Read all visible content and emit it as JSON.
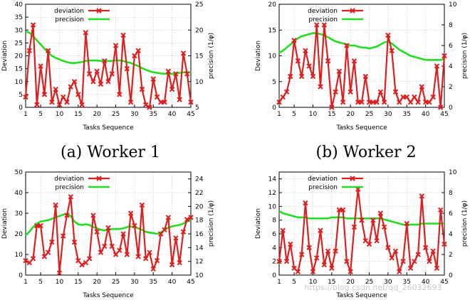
{
  "watermark": "https://blog.csdn.net/qq_26032693",
  "colors": {
    "deviation": "#dd1f1f",
    "precision": "#22dd22",
    "grid": "#999999"
  },
  "chart_data": [
    {
      "type": "line",
      "caption": "(a) Worker 1",
      "xlabel": "Tasks Sequence",
      "ylabel": "Deviation",
      "y2label": "precision (1/φ)",
      "xlim": [
        1,
        45
      ],
      "xticks": [
        1,
        5,
        10,
        15,
        20,
        25,
        30,
        35,
        40,
        45
      ],
      "ylim": [
        0,
        40
      ],
      "yticks": [
        0,
        5,
        10,
        15,
        20,
        25,
        30,
        35,
        40
      ],
      "y2lim": [
        5,
        25
      ],
      "y2ticks": [
        5,
        10,
        15,
        20,
        25
      ],
      "legend": [
        "deviation",
        "precision"
      ],
      "x": [
        1,
        2,
        3,
        4,
        5,
        6,
        7,
        8,
        9,
        10,
        11,
        12,
        13,
        14,
        15,
        16,
        17,
        18,
        19,
        20,
        21,
        22,
        23,
        24,
        25,
        26,
        27,
        28,
        29,
        30,
        31,
        32,
        33,
        34,
        35,
        36,
        37,
        38,
        39,
        40,
        41,
        42,
        43,
        44,
        45
      ],
      "series": [
        {
          "name": "deviation",
          "axis": "left",
          "values": [
            4,
            22,
            32,
            1,
            16,
            5,
            22,
            2,
            7,
            1,
            4,
            2,
            8,
            10,
            5,
            1,
            29,
            13,
            10,
            14,
            9,
            18,
            10,
            13,
            24,
            5,
            28,
            15,
            2,
            20,
            22,
            7,
            1,
            0,
            11,
            4,
            2,
            2,
            14,
            7,
            13,
            3,
            21,
            13,
            2
          ]
        },
        {
          "name": "precision",
          "axis": "right",
          "values": [
            19.7,
            19.5,
            18.8,
            18.0,
            17.2,
            16.4,
            15.6,
            15.0,
            14.6,
            14.3,
            14.0,
            13.8,
            13.6,
            13.6,
            13.7,
            13.8,
            14.0,
            14.1,
            14.1,
            14.1,
            14.0,
            14.0,
            14.0,
            14.0,
            14.1,
            14.1,
            14.0,
            13.8,
            13.6,
            13.3,
            13.0,
            12.6,
            12.3,
            12.0,
            11.8,
            11.7,
            11.6,
            11.5,
            11.5,
            11.5,
            11.6,
            11.7,
            11.8,
            11.8,
            11.8
          ]
        }
      ]
    },
    {
      "type": "line",
      "caption": "(b) Worker 2",
      "xlabel": "Tasks Sequence",
      "ylabel": "Deviation",
      "y2label": "precision (1/φ)",
      "xlim": [
        1,
        45
      ],
      "xticks": [
        1,
        5,
        10,
        15,
        20,
        25,
        30,
        35,
        40,
        45
      ],
      "ylim": [
        0,
        20
      ],
      "yticks": [
        0,
        5,
        10,
        15,
        20
      ],
      "y2lim": [
        0,
        10
      ],
      "y2ticks": [
        0,
        2,
        4,
        6,
        8,
        10
      ],
      "legend": [
        "deviation",
        "precision"
      ],
      "x": [
        1,
        2,
        3,
        4,
        5,
        6,
        7,
        8,
        9,
        10,
        11,
        12,
        13,
        14,
        15,
        16,
        17,
        18,
        19,
        20,
        21,
        22,
        23,
        24,
        25,
        26,
        27,
        28,
        29,
        30,
        31,
        32,
        33,
        34,
        35,
        36,
        37,
        38,
        39,
        40,
        41,
        42,
        43,
        44,
        45
      ],
      "series": [
        {
          "name": "deviation",
          "axis": "left",
          "values": [
            1,
            2,
            3,
            6,
            13,
            9,
            6,
            11,
            8,
            6,
            16,
            4,
            16,
            9,
            0,
            3,
            7,
            1,
            12,
            3,
            9,
            1,
            1,
            6,
            1,
            1,
            1,
            3,
            1,
            14,
            11,
            3,
            1,
            2,
            2,
            1,
            2,
            1,
            4,
            1,
            1,
            2,
            8,
            0,
            10
          ]
        },
        {
          "name": "precision",
          "axis": "right",
          "values": [
            5.3,
            5.5,
            5.8,
            6.1,
            6.4,
            6.7,
            6.9,
            7.0,
            7.1,
            7.2,
            7.2,
            7.1,
            7.0,
            6.8,
            6.6,
            6.4,
            6.3,
            6.2,
            6.1,
            6.0,
            6.0,
            5.9,
            5.8,
            5.8,
            5.7,
            5.8,
            5.9,
            6.1,
            6.3,
            6.4,
            6.2,
            5.9,
            5.6,
            5.4,
            5.2,
            5.0,
            4.9,
            4.8,
            4.7,
            4.6,
            4.6,
            4.6,
            4.6,
            4.6,
            4.7
          ]
        }
      ]
    },
    {
      "type": "line",
      "caption": "",
      "xlabel": "Tasks Sequence",
      "ylabel": "Deviation",
      "y2label": "precision (1/φ)",
      "xlim": [
        1,
        45
      ],
      "xticks": [
        1,
        5,
        10,
        15,
        20,
        25,
        30,
        35,
        40,
        45
      ],
      "ylim": [
        0,
        50
      ],
      "yticks": [
        0,
        10,
        20,
        30,
        40,
        50
      ],
      "y2lim": [
        10,
        25
      ],
      "y2ticks": [
        10,
        12,
        14,
        16,
        18,
        20,
        22,
        24
      ],
      "legend": [
        "deviation",
        "precision"
      ],
      "x": [
        1,
        2,
        3,
        4,
        5,
        6,
        7,
        8,
        9,
        10,
        11,
        12,
        13,
        14,
        15,
        16,
        17,
        18,
        19,
        20,
        21,
        22,
        23,
        24,
        25,
        26,
        27,
        28,
        29,
        30,
        31,
        32,
        33,
        34,
        35,
        36,
        37,
        38,
        39,
        40,
        41,
        42,
        43,
        44,
        45
      ],
      "series": [
        {
          "name": "deviation",
          "axis": "left",
          "values": [
            7,
            6,
            8,
            24,
            24,
            9,
            11,
            16,
            34,
            1,
            19,
            29,
            38,
            16,
            7,
            5,
            6,
            8,
            29,
            21,
            11,
            14,
            23,
            14,
            10,
            12,
            20,
            10,
            30,
            24,
            9,
            34,
            8,
            11,
            3,
            7,
            20,
            22,
            28,
            5,
            18,
            6,
            21,
            27,
            28
          ]
        },
        {
          "name": "precision",
          "axis": "right",
          "values": [
            15.8,
            16.3,
            17.0,
            17.5,
            17.8,
            17.9,
            18.0,
            18.2,
            18.4,
            18.6,
            18.8,
            18.9,
            18.6,
            17.8,
            17.4,
            17.3,
            17.4,
            17.3,
            17.0,
            16.8,
            16.6,
            16.5,
            16.6,
            16.7,
            16.7,
            16.7,
            16.8,
            17.0,
            17.1,
            17.0,
            16.8,
            16.6,
            16.3,
            16.2,
            16.1,
            16.0,
            16.2,
            16.6,
            16.9,
            17.1,
            17.2,
            17.3,
            17.5,
            17.8,
            18.0
          ]
        }
      ]
    },
    {
      "type": "line",
      "caption": "",
      "xlabel": "Tasks Sequence",
      "ylabel": "Deviation",
      "y2label": "precision (1/φ)",
      "xlim": [
        1,
        45
      ],
      "xticks": [
        1,
        5,
        10,
        15,
        20,
        25,
        30,
        35,
        40,
        45
      ],
      "ylim": [
        0,
        15
      ],
      "yticks": [
        0,
        2,
        4,
        6,
        8,
        10,
        12,
        14
      ],
      "y2lim": [
        0,
        10
      ],
      "y2ticks": [
        0,
        2,
        4,
        6,
        8,
        10
      ],
      "legend": [
        "deviation",
        "precision"
      ],
      "x": [
        1,
        2,
        3,
        4,
        5,
        6,
        7,
        8,
        9,
        10,
        11,
        12,
        13,
        14,
        15,
        16,
        17,
        18,
        19,
        20,
        21,
        22,
        23,
        24,
        25,
        26,
        27,
        28,
        29,
        30,
        31,
        32,
        33,
        34,
        35,
        36,
        37,
        38,
        39,
        40,
        41,
        42,
        43,
        44,
        45
      ],
      "series": [
        {
          "name": "deviation",
          "axis": "left",
          "values": [
            2,
            6.5,
            2,
            4.5,
            1,
            0.5,
            3,
            10.5,
            4,
            0.5,
            2.5,
            6.5,
            1.5,
            3.5,
            1,
            3.5,
            9.5,
            9.5,
            2,
            0.5,
            7,
            12.5,
            8,
            5,
            4.5,
            8,
            5,
            9,
            7,
            4,
            2.5,
            3.5,
            0.5,
            2,
            7.5,
            1,
            2,
            3,
            11.5,
            4,
            2,
            3.5,
            1,
            9.5,
            4.5
          ]
        },
        {
          "name": "precision",
          "axis": "right",
          "values": [
            6.2,
            6.0,
            5.9,
            5.8,
            5.7,
            5.6,
            5.6,
            5.6,
            5.5,
            5.5,
            5.5,
            5.5,
            5.5,
            5.5,
            5.6,
            5.6,
            5.6,
            5.6,
            5.5,
            5.5,
            5.5,
            5.5,
            5.5,
            5.5,
            5.5,
            5.5,
            5.5,
            5.5,
            5.4,
            5.3,
            5.2,
            5.1,
            5.0,
            4.9,
            4.9,
            4.9,
            4.9,
            4.9,
            5.0,
            5.0,
            5.0,
            5.0,
            5.0,
            5.0,
            5.0
          ]
        }
      ]
    }
  ]
}
